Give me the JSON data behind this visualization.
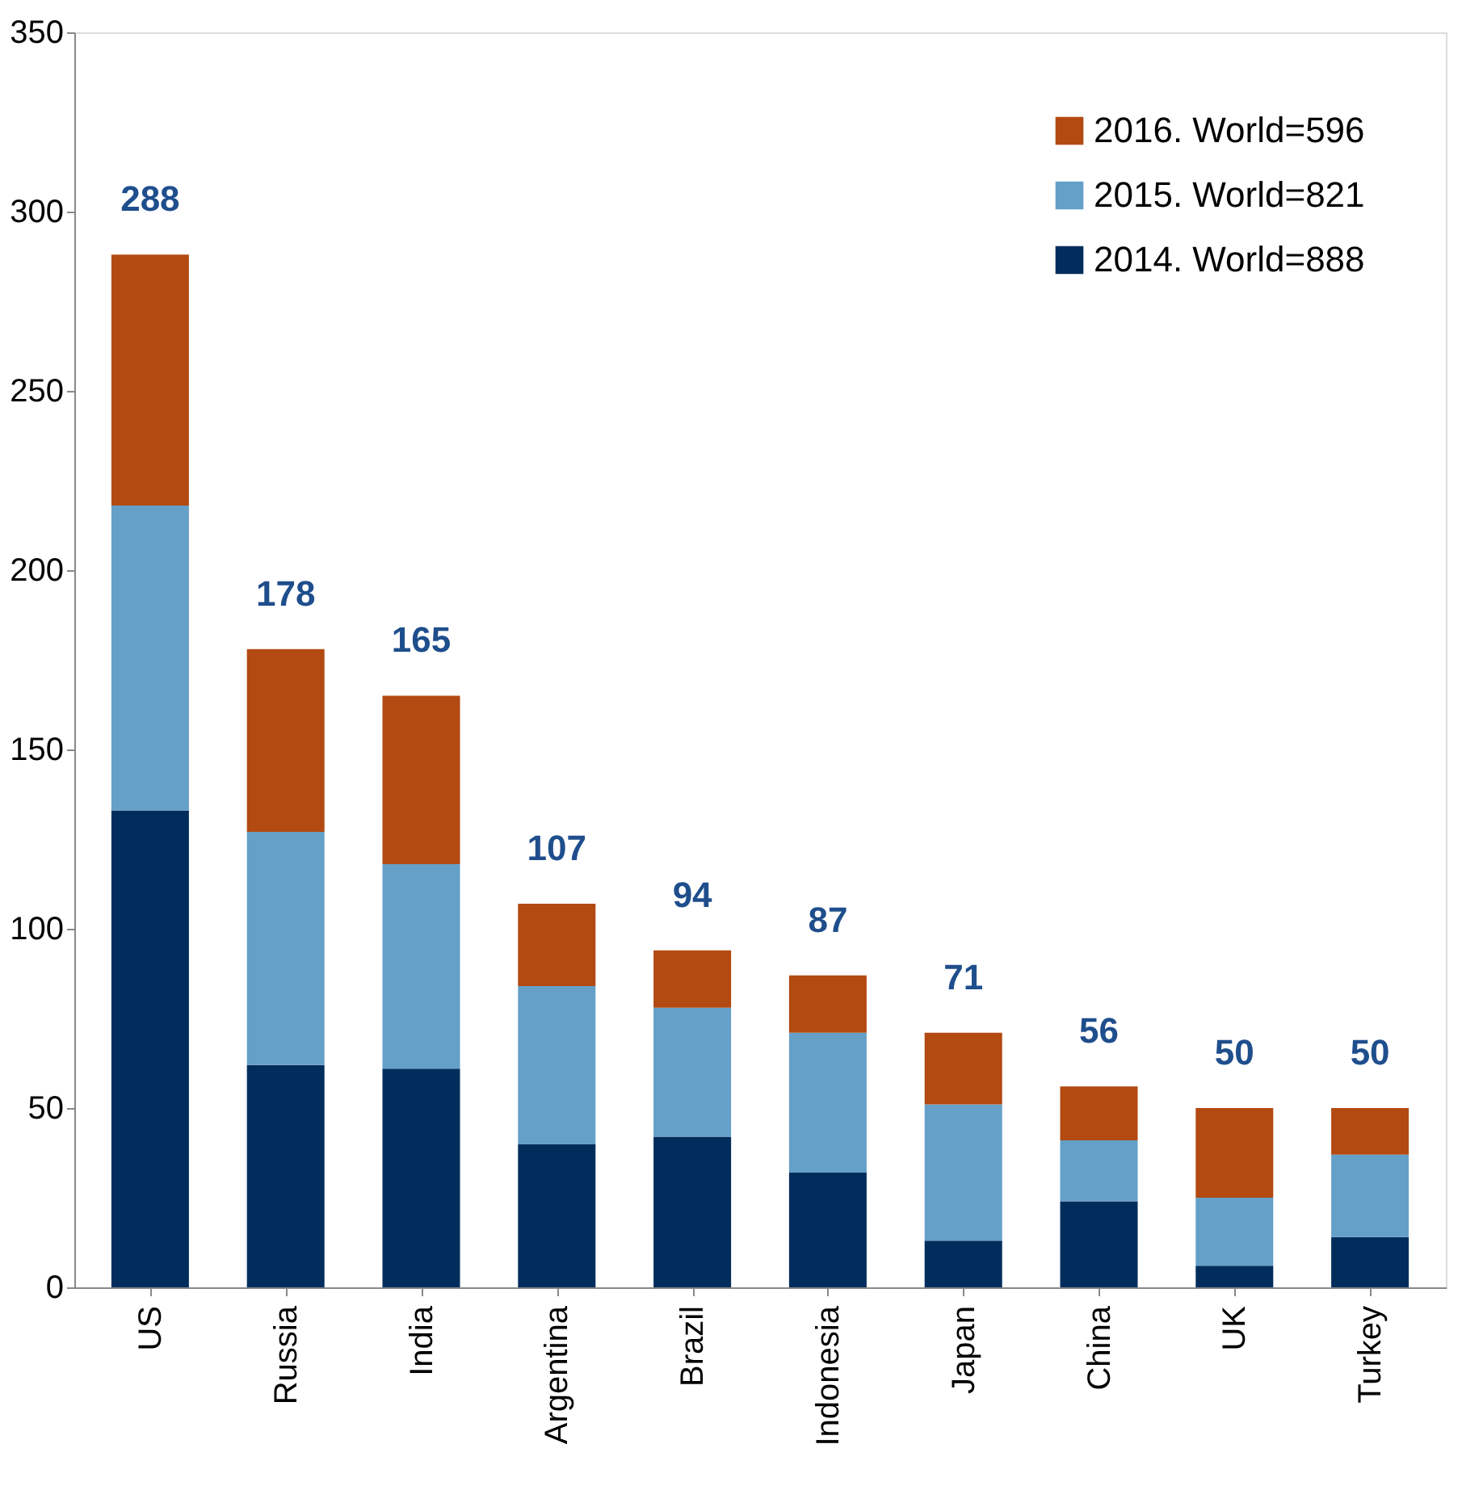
{
  "chart_data": {
    "type": "bar",
    "stacked": true,
    "categories": [
      "US",
      "Russia",
      "India",
      "Argentina",
      "Brazil",
      "Indonesia",
      "Japan",
      "China",
      "UK",
      "Turkey"
    ],
    "series": [
      {
        "name": "2014. World=888",
        "color": "#002d5c",
        "values": [
          133,
          62,
          61,
          40,
          42,
          32,
          13,
          24,
          6,
          14
        ]
      },
      {
        "name": "2015. World=821",
        "color": "#64a0c8",
        "values": [
          85,
          65,
          57,
          44,
          36,
          39,
          38,
          17,
          19,
          23
        ]
      },
      {
        "name": "2016. World=596",
        "color": "#b24a12",
        "values": [
          70,
          51,
          47,
          23,
          16,
          16,
          20,
          15,
          25,
          13
        ]
      }
    ],
    "totals": [
      "288",
      "178",
      "165",
      "107",
      "94",
      "87",
      "71",
      "56",
      "50",
      "50"
    ],
    "ylim": [
      0,
      350
    ],
    "yticks": [
      0,
      50,
      100,
      150,
      200,
      250,
      300,
      350
    ],
    "grid": false,
    "legend": "top right"
  }
}
